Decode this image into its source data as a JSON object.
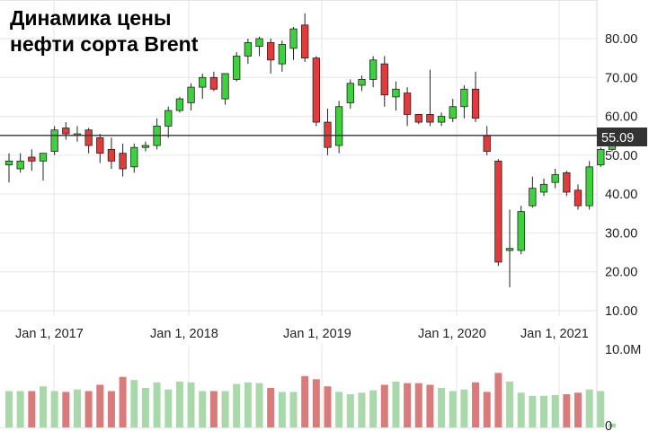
{
  "chart_data": {
    "type": "candlestick",
    "title_lines": [
      "Динамика цены",
      "нефти сорта Brent"
    ],
    "price_axis": {
      "ticks": [
        10,
        20,
        30,
        40,
        50,
        60,
        70,
        80
      ],
      "tick_labels": [
        "10.00",
        "20.00",
        "30.00",
        "40.00",
        "50.00",
        "60.00",
        "70.00",
        "80.00"
      ],
      "range": [
        8,
        87
      ]
    },
    "volume_axis": {
      "tick_labels": [
        "10.0M",
        "0"
      ],
      "range": [
        0,
        10000000
      ]
    },
    "x_axis": {
      "tick_labels": [
        "Jan 1, 2017",
        "Jan 1, 2018",
        "Jan 1, 2019",
        "Jan 1, 2020",
        "Jan 1, 2021"
      ],
      "tick_dates": [
        "2017-01-01",
        "2018-01-01",
        "2019-01-01",
        "2020-01-01",
        "2021-01-01"
      ]
    },
    "current_price": {
      "value": 55.09,
      "label": "55.09"
    },
    "colors": {
      "up": "#3dd13d",
      "down": "#e23b3b",
      "up_volume": "#a9d9aa",
      "down_volume": "#d97b7b"
    },
    "candles": [
      {
        "date": "2016-06",
        "open": 47.5,
        "high": 50.5,
        "low": 43.0,
        "close": 48.5,
        "volume": 4600000
      },
      {
        "date": "2016-07",
        "open": 46.5,
        "high": 50.5,
        "low": 45.5,
        "close": 48.5,
        "volume": 4600000
      },
      {
        "date": "2016-08",
        "open": 49.5,
        "high": 51.5,
        "low": 46.0,
        "close": 48.5,
        "volume": 4600000
      },
      {
        "date": "2016-09",
        "open": 48.5,
        "high": 50.5,
        "low": 43.5,
        "close": 50.5,
        "volume": 5200000
      },
      {
        "date": "2016-10",
        "open": 51.0,
        "high": 57.5,
        "low": 50.0,
        "close": 56.5,
        "volume": 4600000
      },
      {
        "date": "2016-11",
        "open": 57.0,
        "high": 58.5,
        "low": 54.0,
        "close": 55.5,
        "volume": 4500000
      },
      {
        "date": "2016-12",
        "open": 55.5,
        "high": 57.5,
        "low": 53.5,
        "close": 55.5,
        "volume": 4800000
      },
      {
        "date": "2017-01",
        "open": 56.5,
        "high": 57.0,
        "low": 50.5,
        "close": 52.5,
        "volume": 4600000
      },
      {
        "date": "2017-02",
        "open": 54.5,
        "high": 55.5,
        "low": 48.0,
        "close": 50.5,
        "volume": 5400000
      },
      {
        "date": "2017-03",
        "open": 51.5,
        "high": 54.5,
        "low": 46.5,
        "close": 48.5,
        "volume": 4600000
      },
      {
        "date": "2017-04",
        "open": 50.5,
        "high": 53.0,
        "low": 44.5,
        "close": 46.5,
        "volume": 6400000
      },
      {
        "date": "2017-05",
        "open": 47.0,
        "high": 53.0,
        "low": 45.5,
        "close": 52.0,
        "volume": 6000000
      },
      {
        "date": "2017-06",
        "open": 52.0,
        "high": 53.5,
        "low": 51.0,
        "close": 52.5,
        "volume": 5000000
      },
      {
        "date": "2017-07",
        "open": 52.5,
        "high": 59.5,
        "low": 51.5,
        "close": 57.5,
        "volume": 5700000
      },
      {
        "date": "2017-08",
        "open": 57.5,
        "high": 62.5,
        "low": 54.5,
        "close": 61.5,
        "volume": 4800000
      },
      {
        "date": "2017-09",
        "open": 61.5,
        "high": 65.0,
        "low": 61.0,
        "close": 64.5,
        "volume": 5800000
      },
      {
        "date": "2017-10",
        "open": 63.5,
        "high": 68.5,
        "low": 61.5,
        "close": 67.5,
        "volume": 5700000
      },
      {
        "date": "2017-11",
        "open": 67.5,
        "high": 71.0,
        "low": 64.5,
        "close": 70.0,
        "volume": 4600000
      },
      {
        "date": "2017-12",
        "open": 70.0,
        "high": 71.5,
        "low": 66.5,
        "close": 67.0,
        "volume": 4600000
      },
      {
        "date": "2017-12b",
        "open": 64.5,
        "high": 70.5,
        "low": 63.0,
        "close": 71.0,
        "volume": 4600000
      },
      {
        "date": "2018-01",
        "open": 69.5,
        "high": 76.5,
        "low": 69.0,
        "close": 75.5,
        "volume": 5500000
      },
      {
        "date": "2018-02",
        "open": 75.5,
        "high": 80.0,
        "low": 73.5,
        "close": 79.0,
        "volume": 5700000
      },
      {
        "date": "2018-03",
        "open": 78.0,
        "high": 80.5,
        "low": 75.5,
        "close": 80.0,
        "volume": 5600000
      },
      {
        "date": "2018-04",
        "open": 79.0,
        "high": 80.0,
        "low": 71.0,
        "close": 74.5,
        "volume": 5000000
      },
      {
        "date": "2018-05",
        "open": 73.5,
        "high": 79.5,
        "low": 71.5,
        "close": 78.5,
        "volume": 4500000
      },
      {
        "date": "2018-06",
        "open": 77.5,
        "high": 83.0,
        "low": 74.5,
        "close": 82.5,
        "volume": 4500000
      },
      {
        "date": "2018-07",
        "open": 83.5,
        "high": 86.5,
        "low": 74.0,
        "close": 75.0,
        "volume": 6500000
      },
      {
        "date": "2018-08",
        "open": 75.0,
        "high": 75.5,
        "low": 57.5,
        "close": 58.5,
        "volume": 6100000
      },
      {
        "date": "2018-09",
        "open": 58.5,
        "high": 62.0,
        "low": 50.0,
        "close": 52.0,
        "volume": 5200000
      },
      {
        "date": "2018-10",
        "open": 52.5,
        "high": 64.0,
        "low": 50.5,
        "close": 62.5,
        "volume": 4500000
      },
      {
        "date": "2018-11",
        "open": 63.5,
        "high": 69.5,
        "low": 62.0,
        "close": 68.5,
        "volume": 4200000
      },
      {
        "date": "2018-12",
        "open": 68.0,
        "high": 70.5,
        "low": 66.5,
        "close": 69.5,
        "volume": 4400000
      },
      {
        "date": "2019-01",
        "open": 69.5,
        "high": 75.5,
        "low": 67.5,
        "close": 74.5,
        "volume": 4700000
      },
      {
        "date": "2019-02",
        "open": 73.5,
        "high": 75.5,
        "low": 62.5,
        "close": 65.5,
        "volume": 5400000
      },
      {
        "date": "2019-03",
        "open": 65.0,
        "high": 69.0,
        "low": 61.5,
        "close": 67.0,
        "volume": 5800000
      },
      {
        "date": "2019-04",
        "open": 66.0,
        "high": 67.5,
        "low": 57.5,
        "close": 60.5,
        "volume": 5600000
      },
      {
        "date": "2019-05",
        "open": 60.5,
        "high": 60.5,
        "low": 58.0,
        "close": 58.5,
        "volume": 5600000
      },
      {
        "date": "2019-06",
        "open": 60.5,
        "high": 72.0,
        "low": 57.5,
        "close": 58.5,
        "volume": 5400000
      },
      {
        "date": "2019-07",
        "open": 58.5,
        "high": 61.0,
        "low": 57.5,
        "close": 60.0,
        "volume": 5000000
      },
      {
        "date": "2019-08",
        "open": 59.5,
        "high": 64.5,
        "low": 58.5,
        "close": 62.5,
        "volume": 4600000
      },
      {
        "date": "2019-09",
        "open": 62.5,
        "high": 68.0,
        "low": 59.5,
        "close": 67.0,
        "volume": 4800000
      },
      {
        "date": "2019-10",
        "open": 67.0,
        "high": 71.5,
        "low": 58.5,
        "close": 59.5,
        "volume": 5700000
      },
      {
        "date": "2019-11",
        "open": 55.0,
        "high": 57.5,
        "low": 50.0,
        "close": 51.0,
        "volume": 4500000
      },
      {
        "date": "2019-12",
        "open": 48.5,
        "high": 49.0,
        "low": 21.5,
        "close": 22.5,
        "volume": 6900000
      },
      {
        "date": "2020-01",
        "open": 25.5,
        "high": 36.0,
        "low": 16.0,
        "close": 26.0,
        "volume": 5800000
      },
      {
        "date": "2020-02",
        "open": 25.5,
        "high": 37.0,
        "low": 24.5,
        "close": 35.5,
        "volume": 4400000
      },
      {
        "date": "2020-03",
        "open": 37.0,
        "high": 44.5,
        "low": 36.5,
        "close": 41.5,
        "volume": 4000000
      },
      {
        "date": "2020-04",
        "open": 40.5,
        "high": 44.0,
        "low": 39.5,
        "close": 42.5,
        "volume": 4000000
      },
      {
        "date": "2020-05",
        "open": 43.0,
        "high": 46.5,
        "low": 41.5,
        "close": 45.0,
        "volume": 4100000
      },
      {
        "date": "2020-06",
        "open": 45.5,
        "high": 46.0,
        "low": 39.5,
        "close": 40.5,
        "volume": 4200000
      },
      {
        "date": "2020-07",
        "open": 41.0,
        "high": 42.5,
        "low": 36.0,
        "close": 37.0,
        "volume": 4400000
      },
      {
        "date": "2020-08",
        "open": 37.0,
        "high": 48.5,
        "low": 36.0,
        "close": 47.0,
        "volume": 4800000
      },
      {
        "date": "2020-09",
        "open": 47.5,
        "high": 52.0,
        "low": 47.0,
        "close": 51.5,
        "volume": 4600000
      },
      {
        "date": "2020-10",
        "open": 51.5,
        "high": 56.5,
        "low": 51.0,
        "close": 55.5,
        "volume": 500000
      }
    ]
  }
}
